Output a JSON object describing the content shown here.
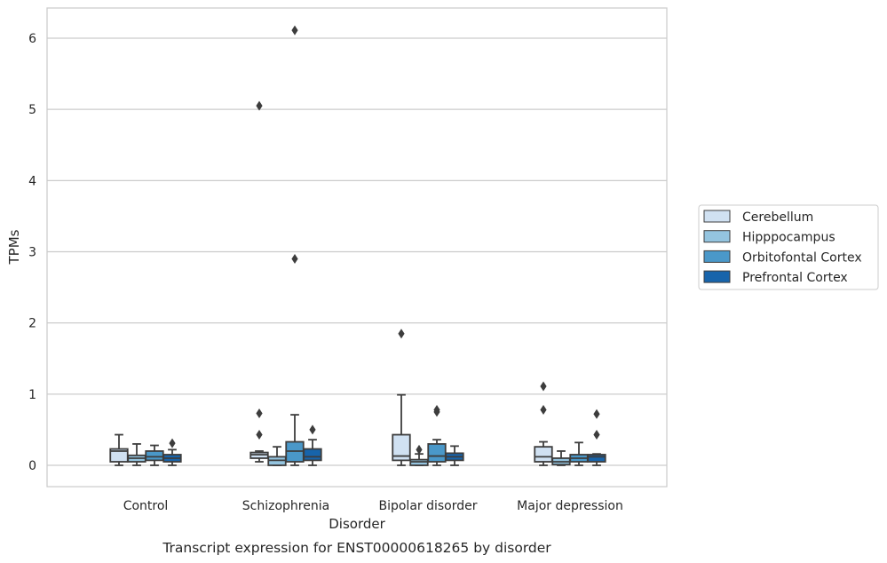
{
  "chart_data": {
    "type": "box",
    "caption": "Transcript expression for ENST00000618265 by disorder",
    "xlabel": "Disorder",
    "ylabel": "TPMs",
    "ylim": [
      -0.3,
      6.42
    ],
    "yticks": [
      0,
      1,
      2,
      3,
      4,
      5,
      6
    ],
    "grid": "horizontal",
    "legend_position": "right",
    "categories": [
      "Control",
      "Schizophrenia",
      "Bipolar disorder",
      "Major depression"
    ],
    "series": [
      {
        "name": "Cerebellum",
        "color": "#d0e1f2",
        "boxes": [
          {
            "min": 0.0,
            "q1": 0.05,
            "median": 0.2,
            "q3": 0.23,
            "max": 0.43,
            "outliers": []
          },
          {
            "min": 0.05,
            "q1": 0.1,
            "median": 0.15,
            "q3": 0.18,
            "max": 0.2,
            "outliers": [
              0.43,
              0.73,
              5.05
            ]
          },
          {
            "min": 0.0,
            "q1": 0.07,
            "median": 0.13,
            "q3": 0.43,
            "max": 0.99,
            "outliers": [
              1.85
            ]
          },
          {
            "min": 0.0,
            "q1": 0.05,
            "median": 0.12,
            "q3": 0.26,
            "max": 0.33,
            "outliers": [
              0.78,
              1.11
            ]
          }
        ]
      },
      {
        "name": "Hipppocampus",
        "color": "#94c4df",
        "boxes": [
          {
            "min": 0.0,
            "q1": 0.05,
            "median": 0.1,
            "q3": 0.14,
            "max": 0.3,
            "outliers": []
          },
          {
            "min": 0.0,
            "q1": 0.0,
            "median": 0.07,
            "q3": 0.12,
            "max": 0.26,
            "outliers": []
          },
          {
            "min": 0.0,
            "q1": 0.0,
            "median": 0.05,
            "q3": 0.08,
            "max": 0.16,
            "outliers": [
              0.22
            ]
          },
          {
            "min": 0.0,
            "q1": 0.01,
            "median": 0.05,
            "q3": 0.1,
            "max": 0.2,
            "outliers": []
          }
        ]
      },
      {
        "name": "Orbitofontal Cortex",
        "color": "#4a98c9",
        "boxes": [
          {
            "min": 0.0,
            "q1": 0.07,
            "median": 0.12,
            "q3": 0.2,
            "max": 0.28,
            "outliers": []
          },
          {
            "min": 0.0,
            "q1": 0.05,
            "median": 0.2,
            "q3": 0.33,
            "max": 0.71,
            "outliers": [
              2.9,
              6.11
            ]
          },
          {
            "min": 0.0,
            "q1": 0.05,
            "median": 0.13,
            "q3": 0.3,
            "max": 0.36,
            "outliers": [
              0.75,
              0.78
            ]
          },
          {
            "min": 0.0,
            "q1": 0.05,
            "median": 0.1,
            "q3": 0.15,
            "max": 0.32,
            "outliers": []
          }
        ]
      },
      {
        "name": "Prefrontal Cortex",
        "color": "#1764ab",
        "boxes": [
          {
            "min": 0.0,
            "q1": 0.05,
            "median": 0.1,
            "q3": 0.15,
            "max": 0.22,
            "outliers": [
              0.31
            ]
          },
          {
            "min": 0.0,
            "q1": 0.07,
            "median": 0.12,
            "q3": 0.23,
            "max": 0.36,
            "outliers": [
              0.5
            ]
          },
          {
            "min": 0.0,
            "q1": 0.07,
            "median": 0.12,
            "q3": 0.17,
            "max": 0.27,
            "outliers": []
          },
          {
            "min": 0.0,
            "q1": 0.05,
            "median": 0.12,
            "q3": 0.15,
            "max": 0.16,
            "outliers": [
              0.43,
              0.72
            ]
          }
        ]
      }
    ]
  }
}
